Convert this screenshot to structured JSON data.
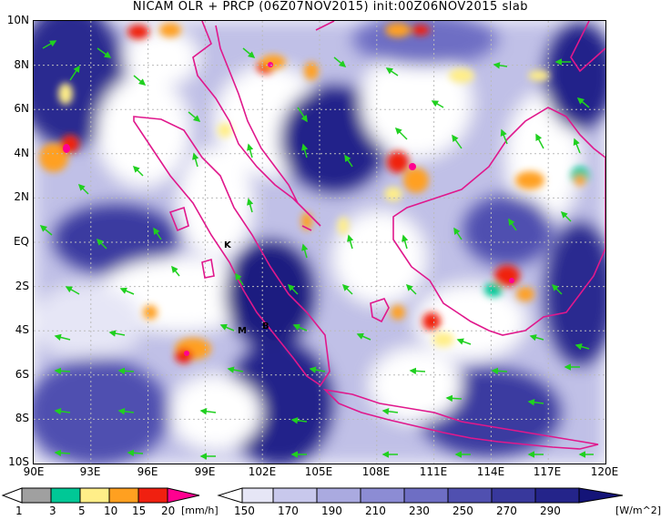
{
  "title": "NICAM OLR + PRCP (06Z07NOV2015) init:00Z06NOV2015 slab",
  "lat_labels": [
    "10N",
    "8N",
    "6N",
    "4N",
    "2N",
    "EQ",
    "2S",
    "4S",
    "6S",
    "8S",
    "10S"
  ],
  "lon_labels": [
    "90E",
    "93E",
    "96E",
    "99E",
    "102E",
    "105E",
    "108E",
    "111E",
    "114E",
    "117E",
    "120E"
  ],
  "places": [
    {
      "label": "K",
      "lon": 101.3,
      "lat": -0.1
    },
    {
      "label": "M",
      "lon": 100.4,
      "lat": -3.9
    },
    {
      "label": "B",
      "lon": 102.4,
      "lat": -3.6
    }
  ],
  "prcp_colorbar": {
    "labels": [
      "1",
      "3",
      "5",
      "10",
      "15",
      "20"
    ],
    "unit": "[mm/h]",
    "colors": [
      "#ffffff",
      "#a0a0a0",
      "#00c896",
      "#ffee88",
      "#ffa020",
      "#f02010",
      "#ff0090"
    ]
  },
  "olr_colorbar": {
    "labels": [
      "150",
      "170",
      "190",
      "210",
      "230",
      "250",
      "270",
      "290"
    ],
    "unit": "[W/m^2]",
    "colors": [
      "#ffffff",
      "#e6e6f6",
      "#c8c8ec",
      "#aaaae0",
      "#8c8cd4",
      "#6e6ec4",
      "#5050b0",
      "#38389c",
      "#24248a",
      "#141478"
    ]
  },
  "colors": {
    "coast": "#e0188c",
    "wind": "#20d020",
    "frame": "#000000"
  }
}
